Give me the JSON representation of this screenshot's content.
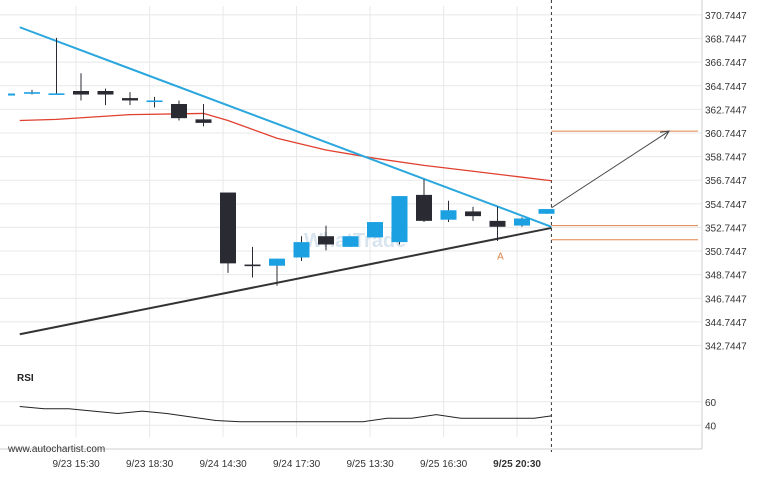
{
  "chart_data": [
    {
      "type": "candlestick",
      "title": "",
      "y_ticks": [
        "370.7447",
        "368.7447",
        "366.7447",
        "364.7447",
        "362.7447",
        "360.7447",
        "358.7447",
        "356.7447",
        "354.7447",
        "352.7447",
        "350.7447",
        "348.7447",
        "346.7447",
        "344.7447",
        "342.7447"
      ],
      "ylim": [
        341.6,
        371.5
      ],
      "x_ticks": [
        "9/23 15:30",
        "9/23 18:30",
        "9/24 14:30",
        "9/24 17:30",
        "9/25 13:30",
        "9/25 16:30",
        "9/25 20:30"
      ],
      "x_tick_index": [
        1.8,
        4.8,
        7.8,
        10.8,
        13.8,
        16.8,
        19.8
      ],
      "candles": [
        {
          "i": 0,
          "o": 364.2,
          "h": 364.4,
          "l": 364.0,
          "c": 364.2
        },
        {
          "i": 1,
          "o": 364.1,
          "h": 368.8,
          "l": 364.0,
          "c": 364.1
        },
        {
          "i": 2,
          "o": 364.3,
          "h": 365.8,
          "l": 363.5,
          "c": 364.0
        },
        {
          "i": 3,
          "o": 364.3,
          "h": 364.5,
          "l": 363.1,
          "c": 364.0
        },
        {
          "i": 4,
          "o": 363.7,
          "h": 364.2,
          "l": 363.1,
          "c": 363.5
        },
        {
          "i": 5,
          "o": 363.5,
          "h": 363.8,
          "l": 362.9,
          "c": 363.5
        },
        {
          "i": 6,
          "o": 363.2,
          "h": 363.5,
          "l": 361.8,
          "c": 362.0
        },
        {
          "i": 7,
          "o": 361.9,
          "h": 363.2,
          "l": 361.3,
          "c": 361.6
        },
        {
          "i": 8,
          "o": 355.7,
          "h": 355.7,
          "l": 348.9,
          "c": 349.7
        },
        {
          "i": 9,
          "o": 349.6,
          "h": 351.1,
          "l": 348.5,
          "c": 349.5
        },
        {
          "i": 10,
          "o": 349.5,
          "h": 350.1,
          "l": 347.8,
          "c": 350.1
        },
        {
          "i": 11,
          "o": 350.2,
          "h": 352.0,
          "l": 349.9,
          "c": 351.5
        },
        {
          "i": 12,
          "o": 352.0,
          "h": 352.9,
          "l": 350.8,
          "c": 351.3
        },
        {
          "i": 13,
          "o": 351.1,
          "h": 352.0,
          "l": 351.1,
          "c": 352.0
        },
        {
          "i": 14,
          "o": 351.9,
          "h": 353.2,
          "l": 351.9,
          "c": 353.2
        },
        {
          "i": 15,
          "o": 351.5,
          "h": 355.4,
          "l": 351.3,
          "c": 355.4
        },
        {
          "i": 16,
          "o": 355.5,
          "h": 356.8,
          "l": 353.2,
          "c": 353.3
        },
        {
          "i": 17,
          "o": 353.4,
          "h": 355.0,
          "l": 353.2,
          "c": 354.2
        },
        {
          "i": 18,
          "o": 354.1,
          "h": 354.5,
          "l": 353.3,
          "c": 353.7
        },
        {
          "i": 19,
          "o": 353.3,
          "h": 354.5,
          "l": 351.6,
          "c": 352.8
        },
        {
          "i": 20,
          "o": 352.9,
          "h": 353.6,
          "l": 352.8,
          "c": 353.5
        },
        {
          "i": 21,
          "o": 353.9,
          "h": 354.3,
          "l": 353.9,
          "c": 354.3
        }
      ],
      "colors": {
        "bull": "#1ba1e2",
        "bear": "#2a2a33",
        "resistance": "#2aa7de",
        "support": "#333333",
        "ma": "#e0402e",
        "levels": "#e0854a",
        "forecast": "#444444",
        "grid": "#e8e8e8"
      },
      "resistance_line": [
        {
          "i": -0.5,
          "v": 369.7
        },
        {
          "i": 21.2,
          "v": 352.8
        }
      ],
      "support_line": [
        {
          "i": -0.5,
          "v": 343.7
        },
        {
          "i": 21.2,
          "v": 352.7
        }
      ],
      "moving_average": [
        {
          "i": -0.5,
          "v": 361.8
        },
        {
          "i": 1,
          "v": 361.9
        },
        {
          "i": 4,
          "v": 362.3
        },
        {
          "i": 7,
          "v": 362.4
        },
        {
          "i": 8,
          "v": 361.8
        },
        {
          "i": 10,
          "v": 360.3
        },
        {
          "i": 12,
          "v": 359.3
        },
        {
          "i": 14,
          "v": 358.6
        },
        {
          "i": 16,
          "v": 358.0
        },
        {
          "i": 18,
          "v": 357.5
        },
        {
          "i": 20,
          "v": 357.0
        },
        {
          "i": 21.2,
          "v": 356.7
        }
      ],
      "levels": [
        {
          "v": 360.9,
          "from_i": 21.2
        },
        {
          "v": 352.9,
          "from_i": 21.2
        },
        {
          "v": 351.7,
          "from_i": 21.2
        }
      ],
      "forecast_arrow": {
        "from": {
          "i": 21.2,
          "v": 354.4
        },
        "to": {
          "i": 26,
          "v": 360.9
        }
      },
      "current_time_index": 21.2,
      "point_label": {
        "text": "A",
        "i": 19,
        "v": 350.8
      },
      "watermark": "WhatTrade"
    },
    {
      "type": "line",
      "title": "RSI",
      "y_ticks": [
        "60",
        "40"
      ],
      "ylim": [
        30,
        70
      ],
      "values": [
        {
          "i": -0.5,
          "v": 56
        },
        {
          "i": 0.5,
          "v": 54
        },
        {
          "i": 1.5,
          "v": 54
        },
        {
          "i": 2.5,
          "v": 52
        },
        {
          "i": 3.5,
          "v": 50
        },
        {
          "i": 4.5,
          "v": 52
        },
        {
          "i": 5.5,
          "v": 50
        },
        {
          "i": 6.5,
          "v": 47
        },
        {
          "i": 7.5,
          "v": 44
        },
        {
          "i": 8.5,
          "v": 43
        },
        {
          "i": 9.5,
          "v": 43
        },
        {
          "i": 10.5,
          "v": 43
        },
        {
          "i": 11.5,
          "v": 43
        },
        {
          "i": 12.5,
          "v": 43
        },
        {
          "i": 13.5,
          "v": 43
        },
        {
          "i": 14.5,
          "v": 46
        },
        {
          "i": 15.5,
          "v": 46
        },
        {
          "i": 16.5,
          "v": 49
        },
        {
          "i": 17.5,
          "v": 46
        },
        {
          "i": 18.5,
          "v": 46
        },
        {
          "i": 19.5,
          "v": 46
        },
        {
          "i": 20.5,
          "v": 46
        },
        {
          "i": 21.2,
          "v": 48
        }
      ]
    }
  ],
  "footer": {
    "source": "www.autochartist.com"
  }
}
